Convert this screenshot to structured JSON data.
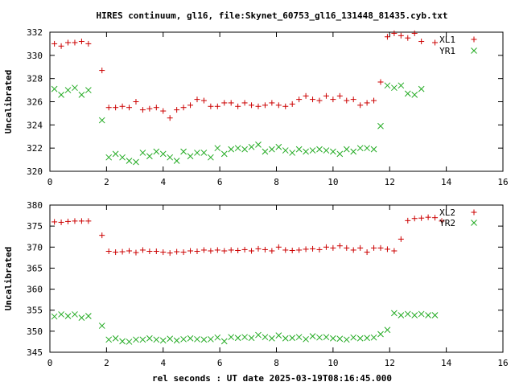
{
  "title": "HIRES continuum, gl16, file:Skynet_60753_gl16_131448_81435.cyb.txt",
  "xlabel": "rel seconds : UT date 2025-03-19T08:16:45.000",
  "colors": {
    "red": "#cc0000",
    "green": "#22aa22",
    "axis": "#000000"
  },
  "chart_data": [
    {
      "type": "scatter",
      "ylabel": "Uncalibrated",
      "xlim": [
        0,
        16
      ],
      "ylim": [
        320,
        332
      ],
      "xticks": [
        0,
        2,
        4,
        6,
        8,
        10,
        12,
        14,
        16
      ],
      "yticks": [
        320,
        322,
        324,
        326,
        328,
        330,
        332
      ],
      "legend_position": "top-right",
      "series": [
        {
          "name": "XL1",
          "marker": "plus",
          "color": "#cc0000",
          "points": [
            [
              0.16,
              331.0
            ],
            [
              0.4,
              330.8
            ],
            [
              0.64,
              331.1
            ],
            [
              0.88,
              331.1
            ],
            [
              1.12,
              331.2
            ],
            [
              1.36,
              331.0
            ],
            [
              1.84,
              328.7
            ],
            [
              2.08,
              325.5
            ],
            [
              2.32,
              325.5
            ],
            [
              2.56,
              325.6
            ],
            [
              2.8,
              325.5
            ],
            [
              3.04,
              326.0
            ],
            [
              3.28,
              325.3
            ],
            [
              3.52,
              325.4
            ],
            [
              3.76,
              325.5
            ],
            [
              4.0,
              325.2
            ],
            [
              4.24,
              324.6
            ],
            [
              4.48,
              325.3
            ],
            [
              4.72,
              325.5
            ],
            [
              4.96,
              325.7
            ],
            [
              5.2,
              326.2
            ],
            [
              5.44,
              326.1
            ],
            [
              5.68,
              325.6
            ],
            [
              5.92,
              325.6
            ],
            [
              6.16,
              325.9
            ],
            [
              6.4,
              325.9
            ],
            [
              6.64,
              325.6
            ],
            [
              6.88,
              325.9
            ],
            [
              7.12,
              325.7
            ],
            [
              7.36,
              325.6
            ],
            [
              7.6,
              325.7
            ],
            [
              7.84,
              325.9
            ],
            [
              8.08,
              325.7
            ],
            [
              8.32,
              325.6
            ],
            [
              8.56,
              325.8
            ],
            [
              8.8,
              326.2
            ],
            [
              9.04,
              326.5
            ],
            [
              9.28,
              326.2
            ],
            [
              9.52,
              326.1
            ],
            [
              9.76,
              326.5
            ],
            [
              10.0,
              326.2
            ],
            [
              10.24,
              326.5
            ],
            [
              10.48,
              326.1
            ],
            [
              10.72,
              326.2
            ],
            [
              10.96,
              325.7
            ],
            [
              11.2,
              325.9
            ],
            [
              11.44,
              326.1
            ],
            [
              11.68,
              327.7
            ],
            [
              11.92,
              331.6
            ],
            [
              12.16,
              331.9
            ],
            [
              12.4,
              331.7
            ],
            [
              12.64,
              331.5
            ],
            [
              12.88,
              331.9
            ],
            [
              13.12,
              331.2
            ],
            [
              13.6,
              331.1
            ]
          ]
        },
        {
          "name": "YR1",
          "marker": "cross",
          "color": "#22aa22",
          "points": [
            [
              0.16,
              327.1
            ],
            [
              0.4,
              326.6
            ],
            [
              0.64,
              327.0
            ],
            [
              0.88,
              327.2
            ],
            [
              1.12,
              326.6
            ],
            [
              1.36,
              327.0
            ],
            [
              1.84,
              324.4
            ],
            [
              2.08,
              321.2
            ],
            [
              2.32,
              321.5
            ],
            [
              2.56,
              321.2
            ],
            [
              2.8,
              320.9
            ],
            [
              3.04,
              320.8
            ],
            [
              3.28,
              321.6
            ],
            [
              3.52,
              321.3
            ],
            [
              3.76,
              321.7
            ],
            [
              4.0,
              321.5
            ],
            [
              4.24,
              321.2
            ],
            [
              4.48,
              320.9
            ],
            [
              4.72,
              321.7
            ],
            [
              4.96,
              321.3
            ],
            [
              5.2,
              321.6
            ],
            [
              5.44,
              321.6
            ],
            [
              5.68,
              321.2
            ],
            [
              5.92,
              322.0
            ],
            [
              6.16,
              321.5
            ],
            [
              6.4,
              321.9
            ],
            [
              6.64,
              322.0
            ],
            [
              6.88,
              321.9
            ],
            [
              7.12,
              322.1
            ],
            [
              7.36,
              322.3
            ],
            [
              7.6,
              321.7
            ],
            [
              7.84,
              321.9
            ],
            [
              8.08,
              322.1
            ],
            [
              8.32,
              321.8
            ],
            [
              8.56,
              321.6
            ],
            [
              8.8,
              321.9
            ],
            [
              9.04,
              321.7
            ],
            [
              9.28,
              321.8
            ],
            [
              9.52,
              321.9
            ],
            [
              9.76,
              321.8
            ],
            [
              10.0,
              321.7
            ],
            [
              10.24,
              321.5
            ],
            [
              10.48,
              321.9
            ],
            [
              10.72,
              321.7
            ],
            [
              10.96,
              322.0
            ],
            [
              11.2,
              322.0
            ],
            [
              11.44,
              321.9
            ],
            [
              11.68,
              323.9
            ],
            [
              11.92,
              327.4
            ],
            [
              12.16,
              327.2
            ],
            [
              12.4,
              327.4
            ],
            [
              12.64,
              326.7
            ],
            [
              12.88,
              326.6
            ],
            [
              13.12,
              327.1
            ]
          ]
        }
      ]
    },
    {
      "type": "scatter",
      "ylabel": "Uncalibrated",
      "xlim": [
        0,
        16
      ],
      "ylim": [
        345,
        380
      ],
      "xticks": [
        0,
        2,
        4,
        6,
        8,
        10,
        12,
        14,
        16
      ],
      "yticks": [
        345,
        350,
        355,
        360,
        365,
        370,
        375,
        380
      ],
      "legend_position": "top-right",
      "series": [
        {
          "name": "XL2",
          "marker": "plus",
          "color": "#cc0000",
          "points": [
            [
              0.16,
              376.0
            ],
            [
              0.4,
              375.9
            ],
            [
              0.64,
              376.1
            ],
            [
              0.88,
              376.2
            ],
            [
              1.12,
              376.2
            ],
            [
              1.36,
              376.2
            ],
            [
              1.84,
              372.8
            ],
            [
              2.08,
              369.0
            ],
            [
              2.32,
              368.8
            ],
            [
              2.56,
              368.9
            ],
            [
              2.8,
              369.1
            ],
            [
              3.04,
              368.7
            ],
            [
              3.28,
              369.3
            ],
            [
              3.52,
              369.0
            ],
            [
              3.76,
              369.0
            ],
            [
              4.0,
              368.8
            ],
            [
              4.24,
              368.6
            ],
            [
              4.48,
              368.9
            ],
            [
              4.72,
              368.8
            ],
            [
              4.96,
              369.1
            ],
            [
              5.2,
              369.0
            ],
            [
              5.44,
              369.3
            ],
            [
              5.68,
              369.1
            ],
            [
              5.92,
              369.3
            ],
            [
              6.16,
              369.1
            ],
            [
              6.4,
              369.3
            ],
            [
              6.64,
              369.2
            ],
            [
              6.88,
              369.4
            ],
            [
              7.12,
              369.1
            ],
            [
              7.36,
              369.6
            ],
            [
              7.6,
              369.4
            ],
            [
              7.84,
              369.1
            ],
            [
              8.08,
              370.0
            ],
            [
              8.32,
              369.3
            ],
            [
              8.56,
              369.2
            ],
            [
              8.8,
              369.3
            ],
            [
              9.04,
              369.5
            ],
            [
              9.28,
              369.6
            ],
            [
              9.52,
              369.4
            ],
            [
              9.76,
              370.0
            ],
            [
              10.0,
              369.8
            ],
            [
              10.24,
              370.3
            ],
            [
              10.48,
              369.8
            ],
            [
              10.72,
              369.3
            ],
            [
              10.96,
              369.8
            ],
            [
              11.2,
              368.8
            ],
            [
              11.44,
              369.8
            ],
            [
              11.68,
              369.8
            ],
            [
              11.92,
              369.5
            ],
            [
              12.16,
              369.1
            ],
            [
              12.4,
              371.9
            ],
            [
              12.64,
              376.3
            ],
            [
              12.88,
              376.8
            ],
            [
              13.12,
              376.9
            ],
            [
              13.36,
              377.1
            ],
            [
              13.6,
              377.0
            ],
            [
              13.84,
              376.2
            ]
          ]
        },
        {
          "name": "YR2",
          "marker": "cross",
          "color": "#22aa22",
          "points": [
            [
              0.16,
              353.5
            ],
            [
              0.4,
              354.0
            ],
            [
              0.64,
              353.6
            ],
            [
              0.88,
              354.0
            ],
            [
              1.12,
              353.2
            ],
            [
              1.36,
              353.6
            ],
            [
              1.84,
              351.3
            ],
            [
              2.08,
              348.0
            ],
            [
              2.32,
              348.3
            ],
            [
              2.56,
              347.6
            ],
            [
              2.8,
              347.5
            ],
            [
              3.04,
              348.0
            ],
            [
              3.28,
              348.0
            ],
            [
              3.52,
              348.3
            ],
            [
              3.76,
              348.0
            ],
            [
              4.0,
              347.8
            ],
            [
              4.24,
              348.2
            ],
            [
              4.48,
              347.8
            ],
            [
              4.72,
              348.1
            ],
            [
              4.96,
              348.3
            ],
            [
              5.2,
              348.1
            ],
            [
              5.44,
              348.0
            ],
            [
              5.68,
              348.1
            ],
            [
              5.92,
              348.5
            ],
            [
              6.16,
              347.6
            ],
            [
              6.4,
              348.6
            ],
            [
              6.64,
              348.4
            ],
            [
              6.88,
              348.6
            ],
            [
              7.12,
              348.4
            ],
            [
              7.36,
              349.1
            ],
            [
              7.6,
              348.6
            ],
            [
              7.84,
              348.3
            ],
            [
              8.08,
              349.0
            ],
            [
              8.32,
              348.3
            ],
            [
              8.56,
              348.4
            ],
            [
              8.8,
              348.6
            ],
            [
              9.04,
              348.1
            ],
            [
              9.28,
              348.8
            ],
            [
              9.52,
              348.5
            ],
            [
              9.76,
              348.6
            ],
            [
              10.0,
              348.3
            ],
            [
              10.24,
              348.2
            ],
            [
              10.48,
              348.0
            ],
            [
              10.72,
              348.5
            ],
            [
              10.96,
              348.3
            ],
            [
              11.2,
              348.4
            ],
            [
              11.44,
              348.5
            ],
            [
              11.68,
              349.3
            ],
            [
              11.92,
              350.3
            ],
            [
              12.16,
              354.3
            ],
            [
              12.4,
              353.8
            ],
            [
              12.64,
              354.1
            ],
            [
              12.88,
              353.8
            ],
            [
              13.12,
              354.1
            ],
            [
              13.36,
              353.8
            ],
            [
              13.6,
              353.8
            ]
          ]
        }
      ]
    }
  ]
}
